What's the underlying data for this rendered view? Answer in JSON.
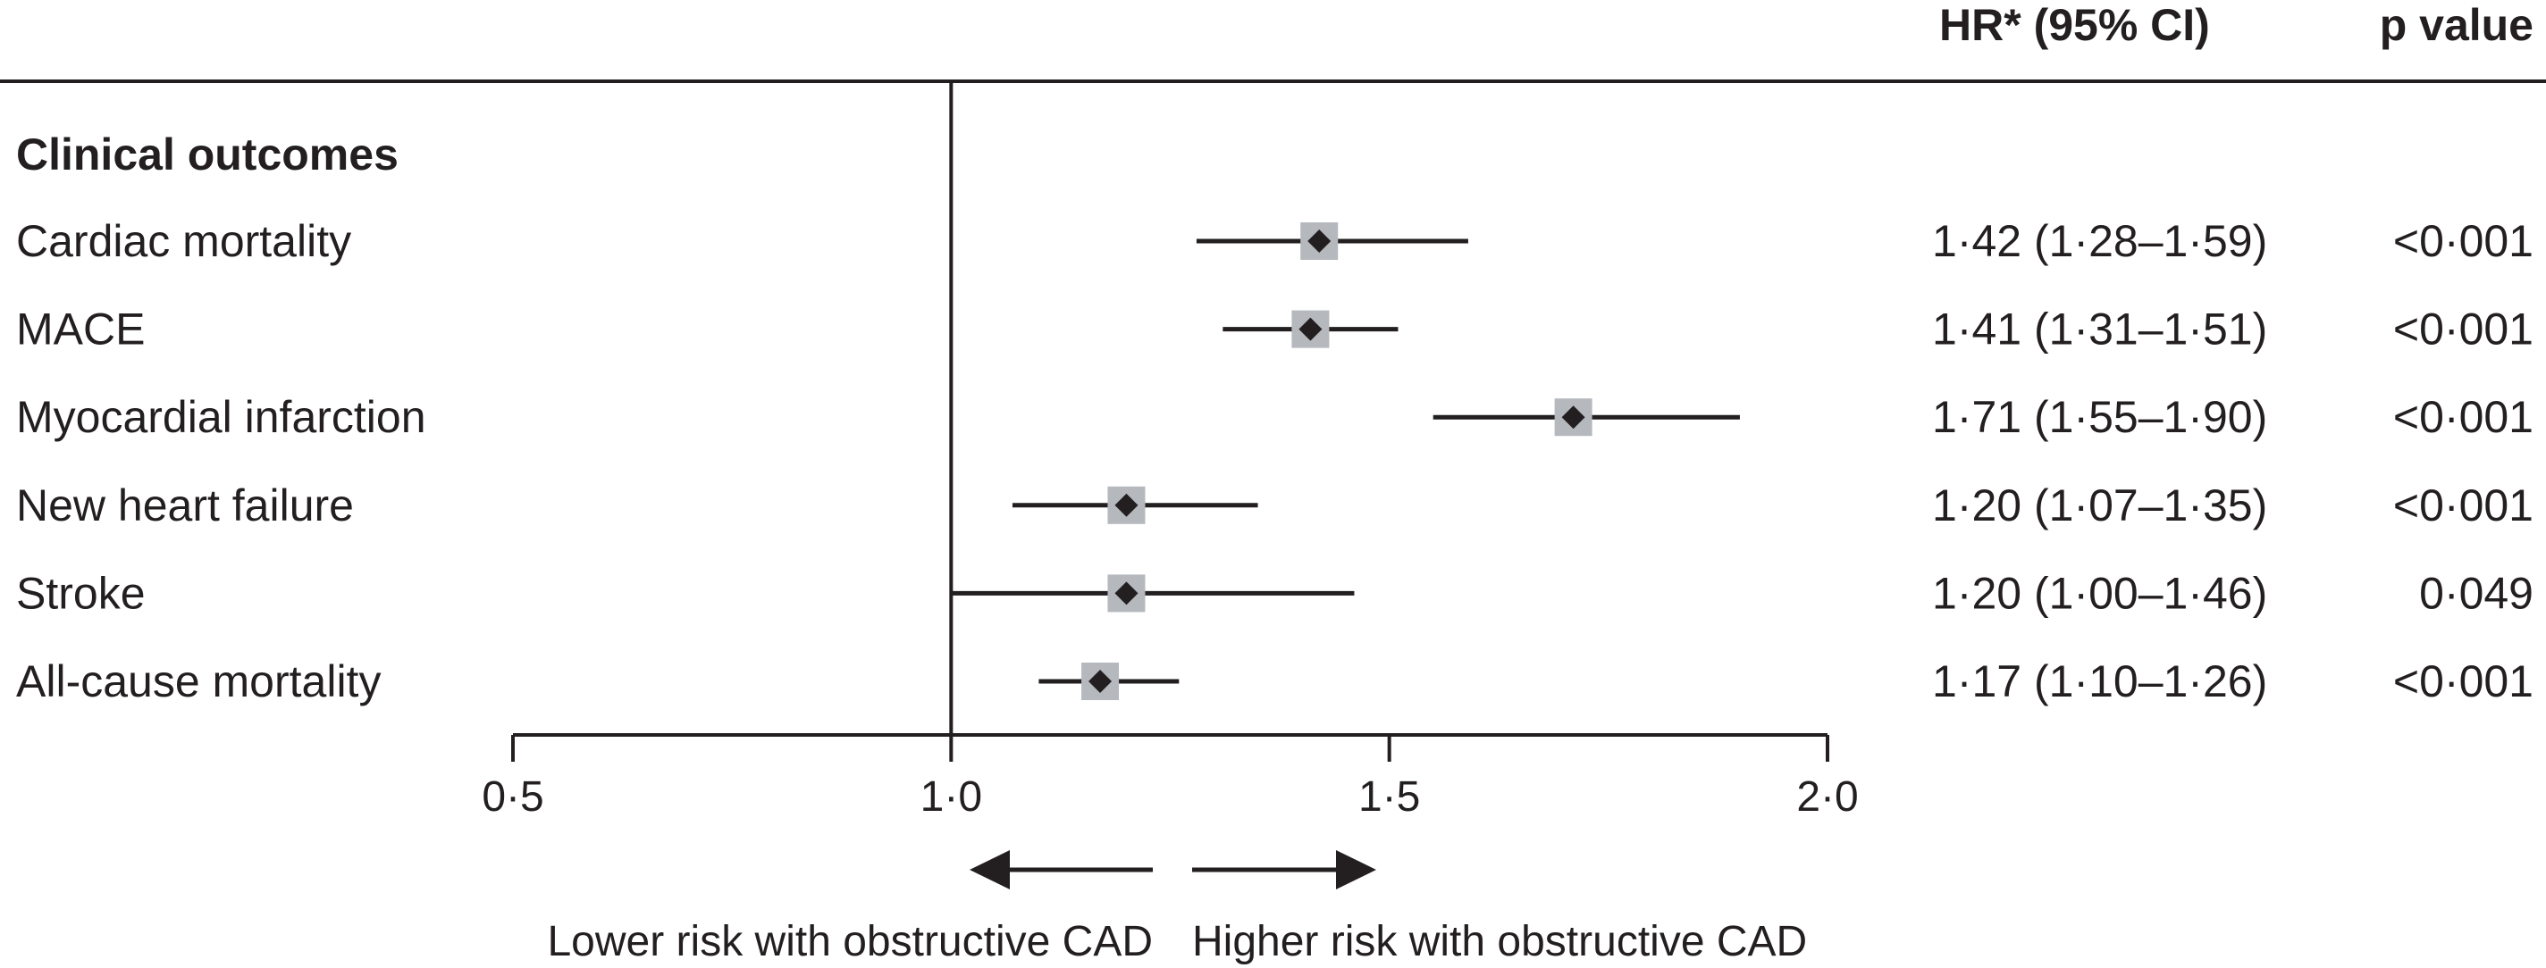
{
  "chart_data": {
    "type": "forest",
    "column_headers": {
      "estimate": "HR* (95% CI)",
      "p_value": "p value"
    },
    "section_title": "Clinical outcomes",
    "reference_value": 1.0,
    "xlim": [
      0.5,
      2.0
    ],
    "ticks": [
      {
        "value": 0.5,
        "label": "0·5"
      },
      {
        "value": 1.0,
        "label": "1·0"
      },
      {
        "value": 1.5,
        "label": "1·5"
      },
      {
        "value": 2.0,
        "label": "2·0"
      }
    ],
    "rows": [
      {
        "label": "Cardiac mortality",
        "hr": 1.42,
        "lower": 1.28,
        "upper": 1.59,
        "hr_text": "1·42 (1·28–1·59)",
        "p_text": "<0·001"
      },
      {
        "label": "MACE",
        "hr": 1.41,
        "lower": 1.31,
        "upper": 1.51,
        "hr_text": "1·41 (1·31–1·51)",
        "p_text": "<0·001"
      },
      {
        "label": "Myocardial infarction",
        "hr": 1.71,
        "lower": 1.55,
        "upper": 1.9,
        "hr_text": "1·71 (1·55–1·90)",
        "p_text": "<0·001"
      },
      {
        "label": "New heart failure",
        "hr": 1.2,
        "lower": 1.07,
        "upper": 1.35,
        "hr_text": "1·20 (1·07–1·35)",
        "p_text": "<0·001"
      },
      {
        "label": "Stroke",
        "hr": 1.2,
        "lower": 1.0,
        "upper": 1.46,
        "hr_text": "1·20 (1·00–1·46)",
        "p_text": "0·049"
      },
      {
        "label": "All-cause mortality",
        "hr": 1.17,
        "lower": 1.1,
        "upper": 1.26,
        "hr_text": "1·17 (1·10–1·26)",
        "p_text": "<0·001"
      }
    ],
    "direction_labels": {
      "lower": "Lower risk with obstructive CAD",
      "higher": "Higher risk with obstructive CAD"
    }
  },
  "colors": {
    "ink": "#231f20",
    "marker_box": "#b5b8bd"
  }
}
